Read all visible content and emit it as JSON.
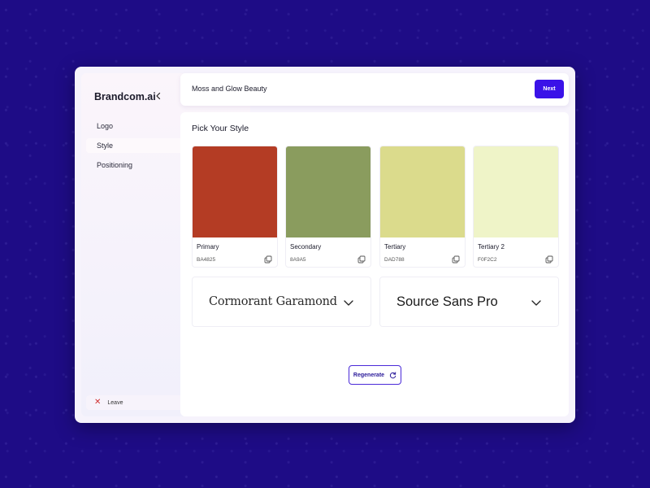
{
  "sidebar": {
    "brand": "Brandcom.ai",
    "items": [
      {
        "label": "Logo"
      },
      {
        "label": "Style"
      },
      {
        "label": "Positioning"
      }
    ],
    "active_index": 1,
    "leave_label": "Leave"
  },
  "header": {
    "project_name": "Moss and Glow Beauty",
    "next_label": "Next"
  },
  "main": {
    "title": "Pick Your Style",
    "colors": [
      {
        "name": "Primary",
        "hex": "BA4825",
        "color": "#b43c24"
      },
      {
        "name": "Secondary",
        "hex": "8A9A5",
        "color": "#8a9c5e"
      },
      {
        "name": "Tertiary",
        "hex": "DAD788",
        "color": "#dbdb8c"
      },
      {
        "name": "Tertiary 2",
        "hex": "F0F2C2",
        "color": "#eff4c8"
      }
    ],
    "fonts": [
      {
        "name": "Cormorant Garamond"
      },
      {
        "name": "Source Sans Pro"
      }
    ],
    "regenerate_label": "Regenerate"
  },
  "icons": {
    "collapse": "chevron-left-icon",
    "leave": "close-icon",
    "copy": "copy-icon",
    "dropdown": "chevron-down-icon",
    "regenerate": "refresh-icon"
  },
  "accent": "#3a12e8"
}
